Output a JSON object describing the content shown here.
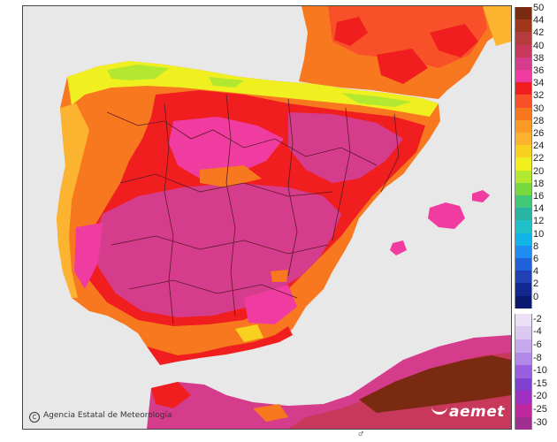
{
  "credit": {
    "symbol": "C",
    "text": "Agencia Estatal de Meteorología"
  },
  "logo": {
    "text": "aemet"
  },
  "colors": {
    "sea": "#e8e8e8",
    "t_very_hot": "#d63c8c",
    "t_hot_pink": "#f03ca0",
    "t_red": "#f01e1e",
    "t_orange": "#f87820",
    "t_light_orange": "#fca838",
    "t_yellow": "#f8e020",
    "t_green": "#78d840",
    "t_deep_brown": "#8b2a10",
    "t_dark_red": "#b43c3c"
  },
  "legend": {
    "positive": [
      {
        "label": "50",
        "color": "#7a2a10"
      },
      {
        "label": "44",
        "color": "#a0361a"
      },
      {
        "label": "42",
        "color": "#b43c3c"
      },
      {
        "label": "40",
        "color": "#c8385a"
      },
      {
        "label": "38",
        "color": "#d63c8c"
      },
      {
        "label": "36",
        "color": "#f03ca0"
      },
      {
        "label": "34",
        "color": "#f01e1e"
      },
      {
        "label": "32",
        "color": "#f85028"
      },
      {
        "label": "30",
        "color": "#f87820"
      },
      {
        "label": "28",
        "color": "#fc9a28"
      },
      {
        "label": "26",
        "color": "#fcb430"
      },
      {
        "label": "24",
        "color": "#f8d020"
      },
      {
        "label": "22",
        "color": "#f0f020"
      },
      {
        "label": "20",
        "color": "#b4e830"
      },
      {
        "label": "18",
        "color": "#78d840"
      },
      {
        "label": "16",
        "color": "#40c878"
      },
      {
        "label": "14",
        "color": "#28b4a0"
      },
      {
        "label": "12",
        "color": "#20c0c8"
      },
      {
        "label": "10",
        "color": "#10b4e8"
      },
      {
        "label": "8",
        "color": "#1e8cf0"
      },
      {
        "label": "6",
        "color": "#2060d8"
      },
      {
        "label": "4",
        "color": "#2040b4"
      },
      {
        "label": "2",
        "color": "#102890"
      },
      {
        "label": "0",
        "color": "#0a1870"
      }
    ],
    "negative": [
      {
        "label": "-2",
        "color": "#ece0f4"
      },
      {
        "label": "-4",
        "color": "#dcc8f0"
      },
      {
        "label": "-6",
        "color": "#c8a8ec"
      },
      {
        "label": "-8",
        "color": "#b088e8"
      },
      {
        "label": "-10",
        "color": "#9860e0"
      },
      {
        "label": "-15",
        "color": "#8040d0"
      },
      {
        "label": "-20",
        "color": "#a030c0"
      },
      {
        "label": "-25",
        "color": "#c028a0"
      },
      {
        "label": "-30",
        "color": "#a03090"
      }
    ]
  }
}
